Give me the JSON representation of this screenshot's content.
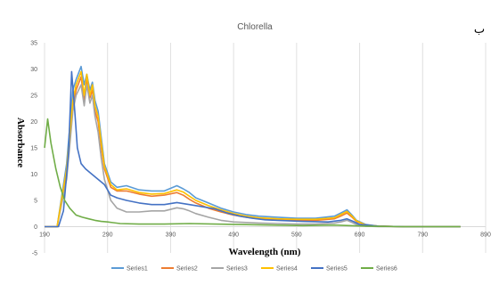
{
  "corner_label": "ب",
  "chart_data": {
    "type": "line",
    "title": "Chlorella",
    "xlabel": "Wavelength (nm)",
    "ylabel": "Absorbance",
    "xlim": [
      190,
      890
    ],
    "ylim": [
      -5,
      35
    ],
    "xticks": [
      190,
      290,
      390,
      490,
      590,
      690,
      790,
      890
    ],
    "yticks": [
      -5,
      0,
      5,
      10,
      15,
      20,
      25,
      30,
      35
    ],
    "grid": "vertical",
    "legend": "bottom",
    "series": [
      {
        "name": "Series1",
        "color": "#5b9bd5",
        "x": [
          190,
          210,
          225,
          235,
          240,
          248,
          253,
          257,
          262,
          266,
          270,
          275,
          280,
          285,
          295,
          305,
          320,
          340,
          360,
          380,
          400,
          410,
          420,
          430,
          450,
          470,
          490,
          510,
          530,
          560,
          590,
          620,
          650,
          660,
          670,
          678,
          685,
          700,
          720,
          760,
          800,
          850
        ],
        "y": [
          0,
          0,
          12,
          26,
          28,
          30.5,
          27,
          29,
          26,
          27.5,
          24,
          22,
          17,
          12,
          8.5,
          7.5,
          7.8,
          7.0,
          6.8,
          6.8,
          7.8,
          7.2,
          6.5,
          5.5,
          4.5,
          3.5,
          2.8,
          2.3,
          2.0,
          1.8,
          1.6,
          1.6,
          2.0,
          2.6,
          3.2,
          2.2,
          1.2,
          0.4,
          0.1,
          0,
          0,
          0
        ]
      },
      {
        "name": "Series2",
        "color": "#ed7d31",
        "x": [
          190,
          210,
          225,
          235,
          240,
          248,
          253,
          257,
          262,
          266,
          270,
          275,
          280,
          285,
          295,
          305,
          320,
          340,
          360,
          380,
          400,
          410,
          420,
          430,
          450,
          470,
          490,
          510,
          530,
          560,
          590,
          620,
          650,
          660,
          670,
          678,
          685,
          700,
          720,
          760,
          800,
          850
        ],
        "y": [
          0,
          0,
          10,
          23,
          26,
          28.5,
          24,
          28,
          24.5,
          26,
          22,
          20,
          15,
          11,
          7.5,
          6.8,
          6.8,
          6.2,
          5.8,
          6.0,
          6.5,
          6.0,
          5.2,
          4.5,
          3.5,
          2.8,
          2.2,
          1.8,
          1.5,
          1.3,
          1.2,
          1.2,
          1.5,
          2.0,
          2.6,
          1.8,
          1.0,
          0.3,
          0.1,
          0,
          0,
          0
        ]
      },
      {
        "name": "Series3",
        "color": "#a5a5a5",
        "x": [
          190,
          210,
          225,
          235,
          240,
          248,
          253,
          257,
          262,
          266,
          270,
          275,
          280,
          285,
          295,
          305,
          320,
          340,
          360,
          380,
          400,
          410,
          420,
          430,
          450,
          470,
          490,
          510,
          530,
          560,
          590,
          620,
          650,
          660,
          670,
          678,
          685,
          700,
          720,
          760,
          800,
          850
        ],
        "y": [
          0,
          0,
          9,
          22,
          25,
          27,
          23,
          27,
          23.5,
          25,
          21,
          18,
          13,
          9,
          5,
          3.5,
          2.8,
          2.8,
          3.0,
          3.0,
          3.6,
          3.4,
          3.0,
          2.5,
          1.8,
          1.2,
          0.9,
          0.8,
          0.7,
          0.6,
          0.5,
          0.5,
          0.7,
          0.9,
          1.2,
          0.8,
          0.4,
          0.1,
          0,
          0,
          0,
          0
        ]
      },
      {
        "name": "Series4",
        "color": "#ffc000",
        "x": [
          190,
          210,
          225,
          235,
          240,
          248,
          253,
          257,
          262,
          266,
          270,
          275,
          280,
          285,
          295,
          305,
          320,
          340,
          360,
          380,
          400,
          410,
          420,
          430,
          450,
          470,
          490,
          510,
          530,
          560,
          590,
          620,
          650,
          660,
          670,
          678,
          685,
          700,
          720,
          760,
          800,
          850
        ],
        "y": [
          0,
          0,
          11,
          24,
          27,
          29.5,
          25,
          29,
          25,
          27,
          23,
          21,
          16,
          11.5,
          8,
          7.0,
          7.2,
          6.5,
          6.2,
          6.3,
          7.0,
          6.6,
          5.8,
          5.0,
          4.0,
          3.2,
          2.5,
          2.0,
          1.7,
          1.5,
          1.4,
          1.4,
          1.7,
          2.3,
          2.9,
          2.0,
          1.1,
          0.3,
          0.1,
          0,
          0,
          0
        ]
      },
      {
        "name": "Series5",
        "color": "#4472c4",
        "x": [
          190,
          212,
          220,
          228,
          233,
          238,
          242,
          248,
          255,
          265,
          275,
          285,
          295,
          305,
          320,
          340,
          360,
          380,
          400,
          420,
          440,
          460,
          480,
          500,
          520,
          540,
          560,
          600,
          640,
          660,
          670,
          680,
          690,
          720,
          760,
          800,
          850
        ],
        "y": [
          0,
          0,
          3,
          14,
          29.5,
          22,
          15,
          12,
          11,
          10,
          9,
          8,
          6,
          5.5,
          5,
          4.5,
          4.2,
          4.2,
          4.6,
          4.2,
          3.8,
          3.4,
          2.6,
          2.0,
          1.6,
          1.3,
          1.2,
          1.0,
          0.9,
          1.2,
          1.5,
          1.0,
          0.4,
          0.1,
          0,
          0,
          0
        ]
      },
      {
        "name": "Series6",
        "color": "#70ad47",
        "x": [
          190,
          195,
          200,
          208,
          215,
          222,
          230,
          240,
          250,
          260,
          270,
          280,
          290,
          310,
          340,
          380,
          420,
          460,
          500,
          550,
          600,
          650,
          700,
          760,
          800,
          850
        ],
        "y": [
          15,
          20.5,
          16,
          11,
          7.5,
          5,
          3.5,
          2.2,
          1.8,
          1.5,
          1.2,
          1.0,
          0.9,
          0.6,
          0.5,
          0.5,
          0.6,
          0.5,
          0.4,
          0.3,
          0.2,
          0.3,
          0.1,
          0,
          0,
          0
        ]
      }
    ]
  }
}
